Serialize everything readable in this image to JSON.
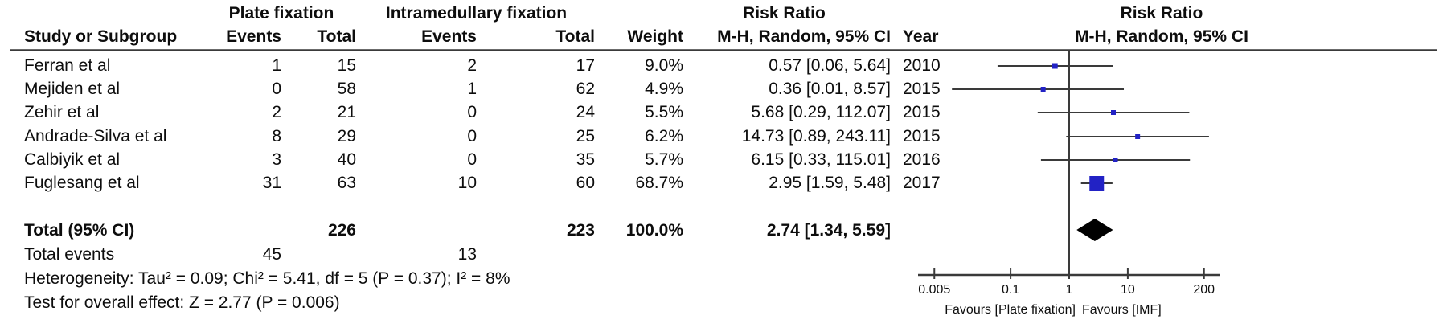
{
  "headers": {
    "plate_group": "Plate fixation",
    "imf_group": "Intramedullary fixation",
    "rr_title_left": "Risk Ratio",
    "rr_title_right": "Risk Ratio",
    "study": "Study or Subgroup",
    "events_plate": "Events",
    "total_plate": "Total",
    "events_imf": "Events",
    "total_imf": "Total",
    "weight": "Weight",
    "mh_left": "M-H, Random, 95% CI",
    "year": "Year",
    "mh_right": "M-H, Random, 95% CI"
  },
  "table": {
    "rows": [
      {
        "study": "Ferran et al",
        "pe": "1",
        "pt": "15",
        "ie": "2",
        "it": "17",
        "weight": "9.0%",
        "ci": "0.57 [0.06, 5.64]",
        "year": "2010"
      },
      {
        "study": "Mejiden et al",
        "pe": "0",
        "pt": "58",
        "ie": "1",
        "it": "62",
        "weight": "4.9%",
        "ci": "0.36 [0.01, 8.57]",
        "year": "2015"
      },
      {
        "study": "Zehir et al",
        "pe": "2",
        "pt": "21",
        "ie": "0",
        "it": "24",
        "weight": "5.5%",
        "ci": "5.68 [0.29, 112.07]",
        "year": "2015"
      },
      {
        "study": "Andrade-Silva et al",
        "pe": "8",
        "pt": "29",
        "ie": "0",
        "it": "25",
        "weight": "6.2%",
        "ci": "14.73 [0.89, 243.11]",
        "year": "2015"
      },
      {
        "study": "Calbiyik et al",
        "pe": "3",
        "pt": "40",
        "ie": "0",
        "it": "35",
        "weight": "5.7%",
        "ci": "6.15 [0.33, 115.01]",
        "year": "2016"
      },
      {
        "study": "Fuglesang et al",
        "pe": "31",
        "pt": "63",
        "ie": "10",
        "it": "60",
        "weight": "68.7%",
        "ci": "2.95 [1.59, 5.48]",
        "year": "2017"
      }
    ],
    "total_row": {
      "label": "Total (95% CI)",
      "pt": "226",
      "it": "223",
      "weight": "100.0%",
      "ci": "2.74 [1.34, 5.59]"
    },
    "total_events": {
      "label": "Total events",
      "pe": "45",
      "ie": "13"
    },
    "heterogeneity": "Heterogeneity: Tau² = 0.09; Chi² = 5.41, df = 5 (P = 0.37); I² = 8%",
    "overall_effect": "Test for overall effect: Z = 2.77 (P = 0.006)"
  },
  "chart_data": {
    "type": "forest",
    "scale": "log10",
    "effect_measure": "Risk Ratio",
    "method": "M-H, Random, 95% CI",
    "axis_ticks": [
      0.005,
      0.1,
      1,
      10,
      200
    ],
    "axis_labels": [
      "0.005",
      "0.1",
      "1",
      "10",
      "200"
    ],
    "xlim": [
      0.005,
      200
    ],
    "favours_left": "Favours [Plate fixation]",
    "favours_right": "Favours [IMF]",
    "studies": [
      {
        "name": "Ferran et al",
        "rr": 0.57,
        "lo": 0.06,
        "hi": 5.64,
        "weight_pct": 9.0,
        "year": 2010
      },
      {
        "name": "Mejiden et al",
        "rr": 0.36,
        "lo": 0.01,
        "hi": 8.57,
        "weight_pct": 4.9,
        "year": 2015
      },
      {
        "name": "Zehir et al",
        "rr": 5.68,
        "lo": 0.29,
        "hi": 112.07,
        "weight_pct": 5.5,
        "year": 2015
      },
      {
        "name": "Andrade-Silva et al",
        "rr": 14.73,
        "lo": 0.89,
        "hi": 243.11,
        "weight_pct": 6.2,
        "year": 2015
      },
      {
        "name": "Calbiyik et al",
        "rr": 6.15,
        "lo": 0.33,
        "hi": 115.01,
        "weight_pct": 5.7,
        "year": 2016
      },
      {
        "name": "Fuglesang et al",
        "rr": 2.95,
        "lo": 1.59,
        "hi": 5.48,
        "weight_pct": 68.7,
        "year": 2017
      }
    ],
    "total": {
      "rr": 2.74,
      "lo": 1.34,
      "hi": 5.59,
      "weight_pct": 100.0
    },
    "marker_color": "#2222c5",
    "diamond_color": "#000000",
    "line_color": "#3a3a3a"
  }
}
